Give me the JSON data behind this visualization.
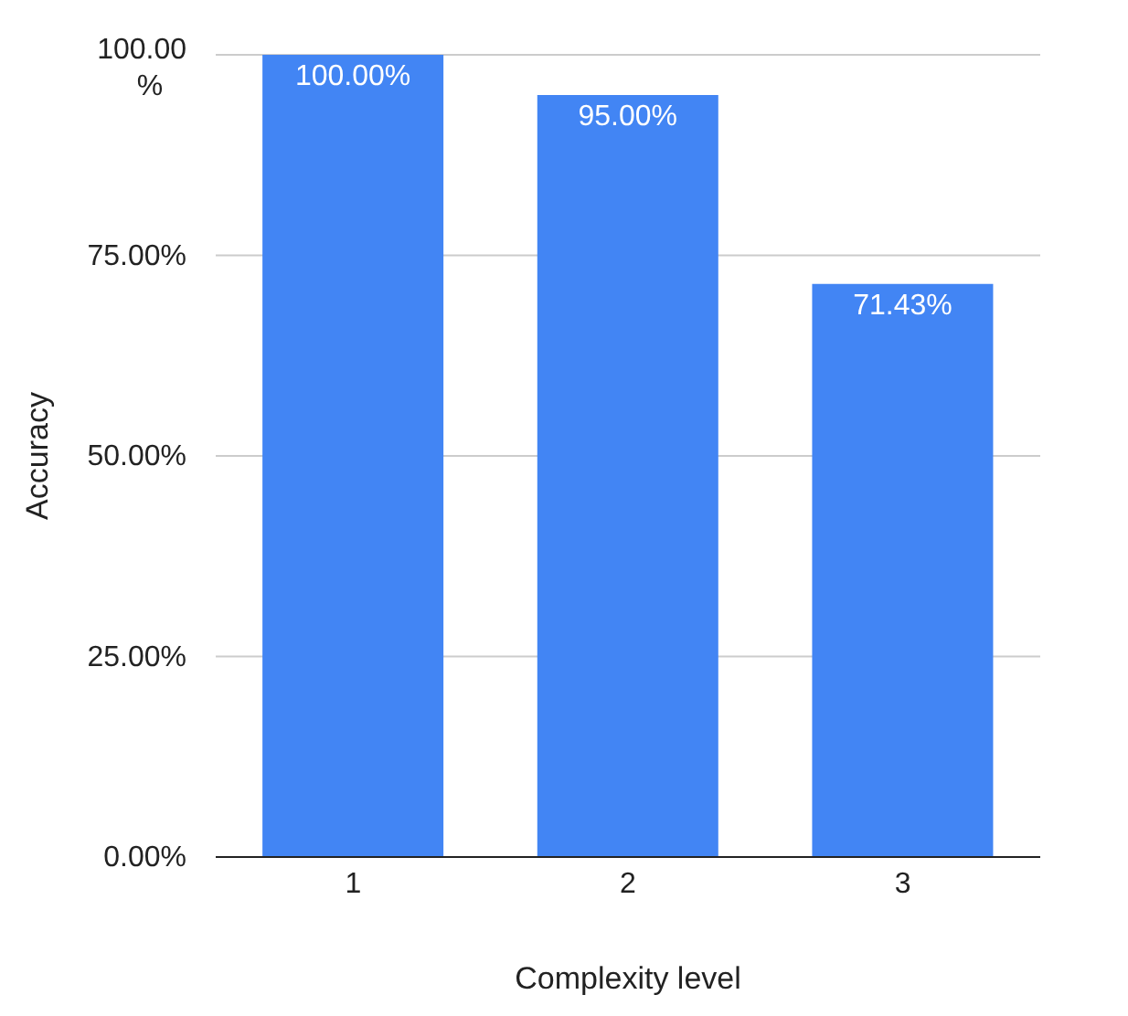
{
  "chart_data": {
    "type": "bar",
    "xlabel": "Complexity level",
    "ylabel": "Accuracy",
    "categories": [
      "1",
      "2",
      "3"
    ],
    "values": [
      100,
      95,
      71.43
    ],
    "value_labels": [
      "100.00%",
      "95.00%",
      "71.43%"
    ],
    "color": "#4285f4",
    "ylim": [
      0,
      100
    ],
    "yticks": [
      {
        "value": 0,
        "label": "0.00%"
      },
      {
        "value": 25,
        "label": "25.00%"
      },
      {
        "value": 50,
        "label": "50.00%"
      },
      {
        "value": 75,
        "label": "75.00%"
      },
      {
        "value": 100,
        "label": "100.00%"
      }
    ],
    "grid": "y"
  }
}
